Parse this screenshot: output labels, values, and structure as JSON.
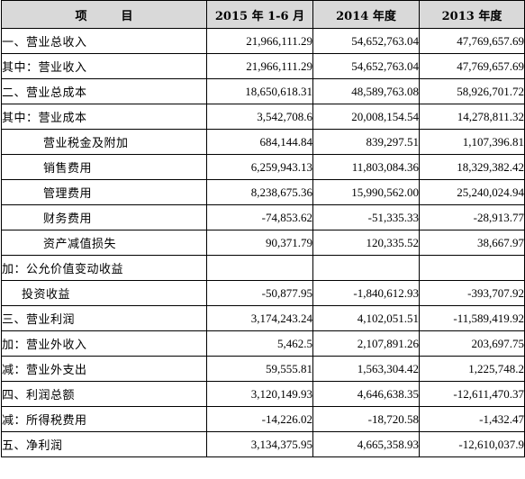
{
  "table": {
    "headers": [
      "项目",
      "2015 年 1-6 月",
      "2014 年度",
      "2013 年度"
    ],
    "rows": [
      {
        "label": "一、营业总收入",
        "indent": 0,
        "values": [
          "21,966,111.29",
          "54,652,763.04",
          "47,769,657.69"
        ]
      },
      {
        "label": "其中：营业收入",
        "indent": 0,
        "values": [
          "21,966,111.29",
          "54,652,763.04",
          "47,769,657.69"
        ]
      },
      {
        "label": "二、营业总成本",
        "indent": 0,
        "values": [
          "18,650,618.31",
          "48,589,763.08",
          "58,926,701.72"
        ]
      },
      {
        "label": "其中：营业成本",
        "indent": 0,
        "values": [
          "3,542,708.6",
          "20,008,154.54",
          "14,278,811.32"
        ]
      },
      {
        "label": "营业税金及附加",
        "indent": 2,
        "values": [
          "684,144.84",
          "839,297.51",
          "1,107,396.81"
        ]
      },
      {
        "label": "销售费用",
        "indent": 2,
        "values": [
          "6,259,943.13",
          "11,803,084.36",
          "18,329,382.42"
        ]
      },
      {
        "label": "管理费用",
        "indent": 2,
        "values": [
          "8,238,675.36",
          "15,990,562.00",
          "25,240,024.94"
        ]
      },
      {
        "label": "财务费用",
        "indent": 2,
        "values": [
          "-74,853.62",
          "-51,335.33",
          "-28,913.77"
        ]
      },
      {
        "label": "资产减值损失",
        "indent": 2,
        "values": [
          "90,371.79",
          "120,335.52",
          "38,667.97"
        ]
      },
      {
        "label": "加：公允价值变动收益",
        "indent": 0,
        "values": [
          "",
          "",
          ""
        ]
      },
      {
        "label": "投资收益",
        "indent": 1,
        "values": [
          "-50,877.95",
          "-1,840,612.93",
          "-393,707.92"
        ]
      },
      {
        "label": "三、营业利润",
        "indent": 0,
        "values": [
          "3,174,243.24",
          "4,102,051.51",
          "-11,589,419.92"
        ]
      },
      {
        "label": "加：营业外收入",
        "indent": 0,
        "values": [
          "5,462.5",
          "2,107,891.26",
          "203,697.75"
        ]
      },
      {
        "label": "减：营业外支出",
        "indent": 0,
        "values": [
          "59,555.81",
          "1,563,304.42",
          "1,225,748.2"
        ]
      },
      {
        "label": "四、利润总额",
        "indent": 0,
        "values": [
          "3,120,149.93",
          "4,646,638.35",
          "-12,611,470.37"
        ]
      },
      {
        "label": "减：所得税费用",
        "indent": 0,
        "values": [
          "-14,226.02",
          "-18,720.58",
          "-1,432.47"
        ]
      },
      {
        "label": "五、净利润",
        "indent": 0,
        "values": [
          "3,134,375.95",
          "4,665,358.93",
          "-12,610,037.9"
        ]
      }
    ]
  }
}
